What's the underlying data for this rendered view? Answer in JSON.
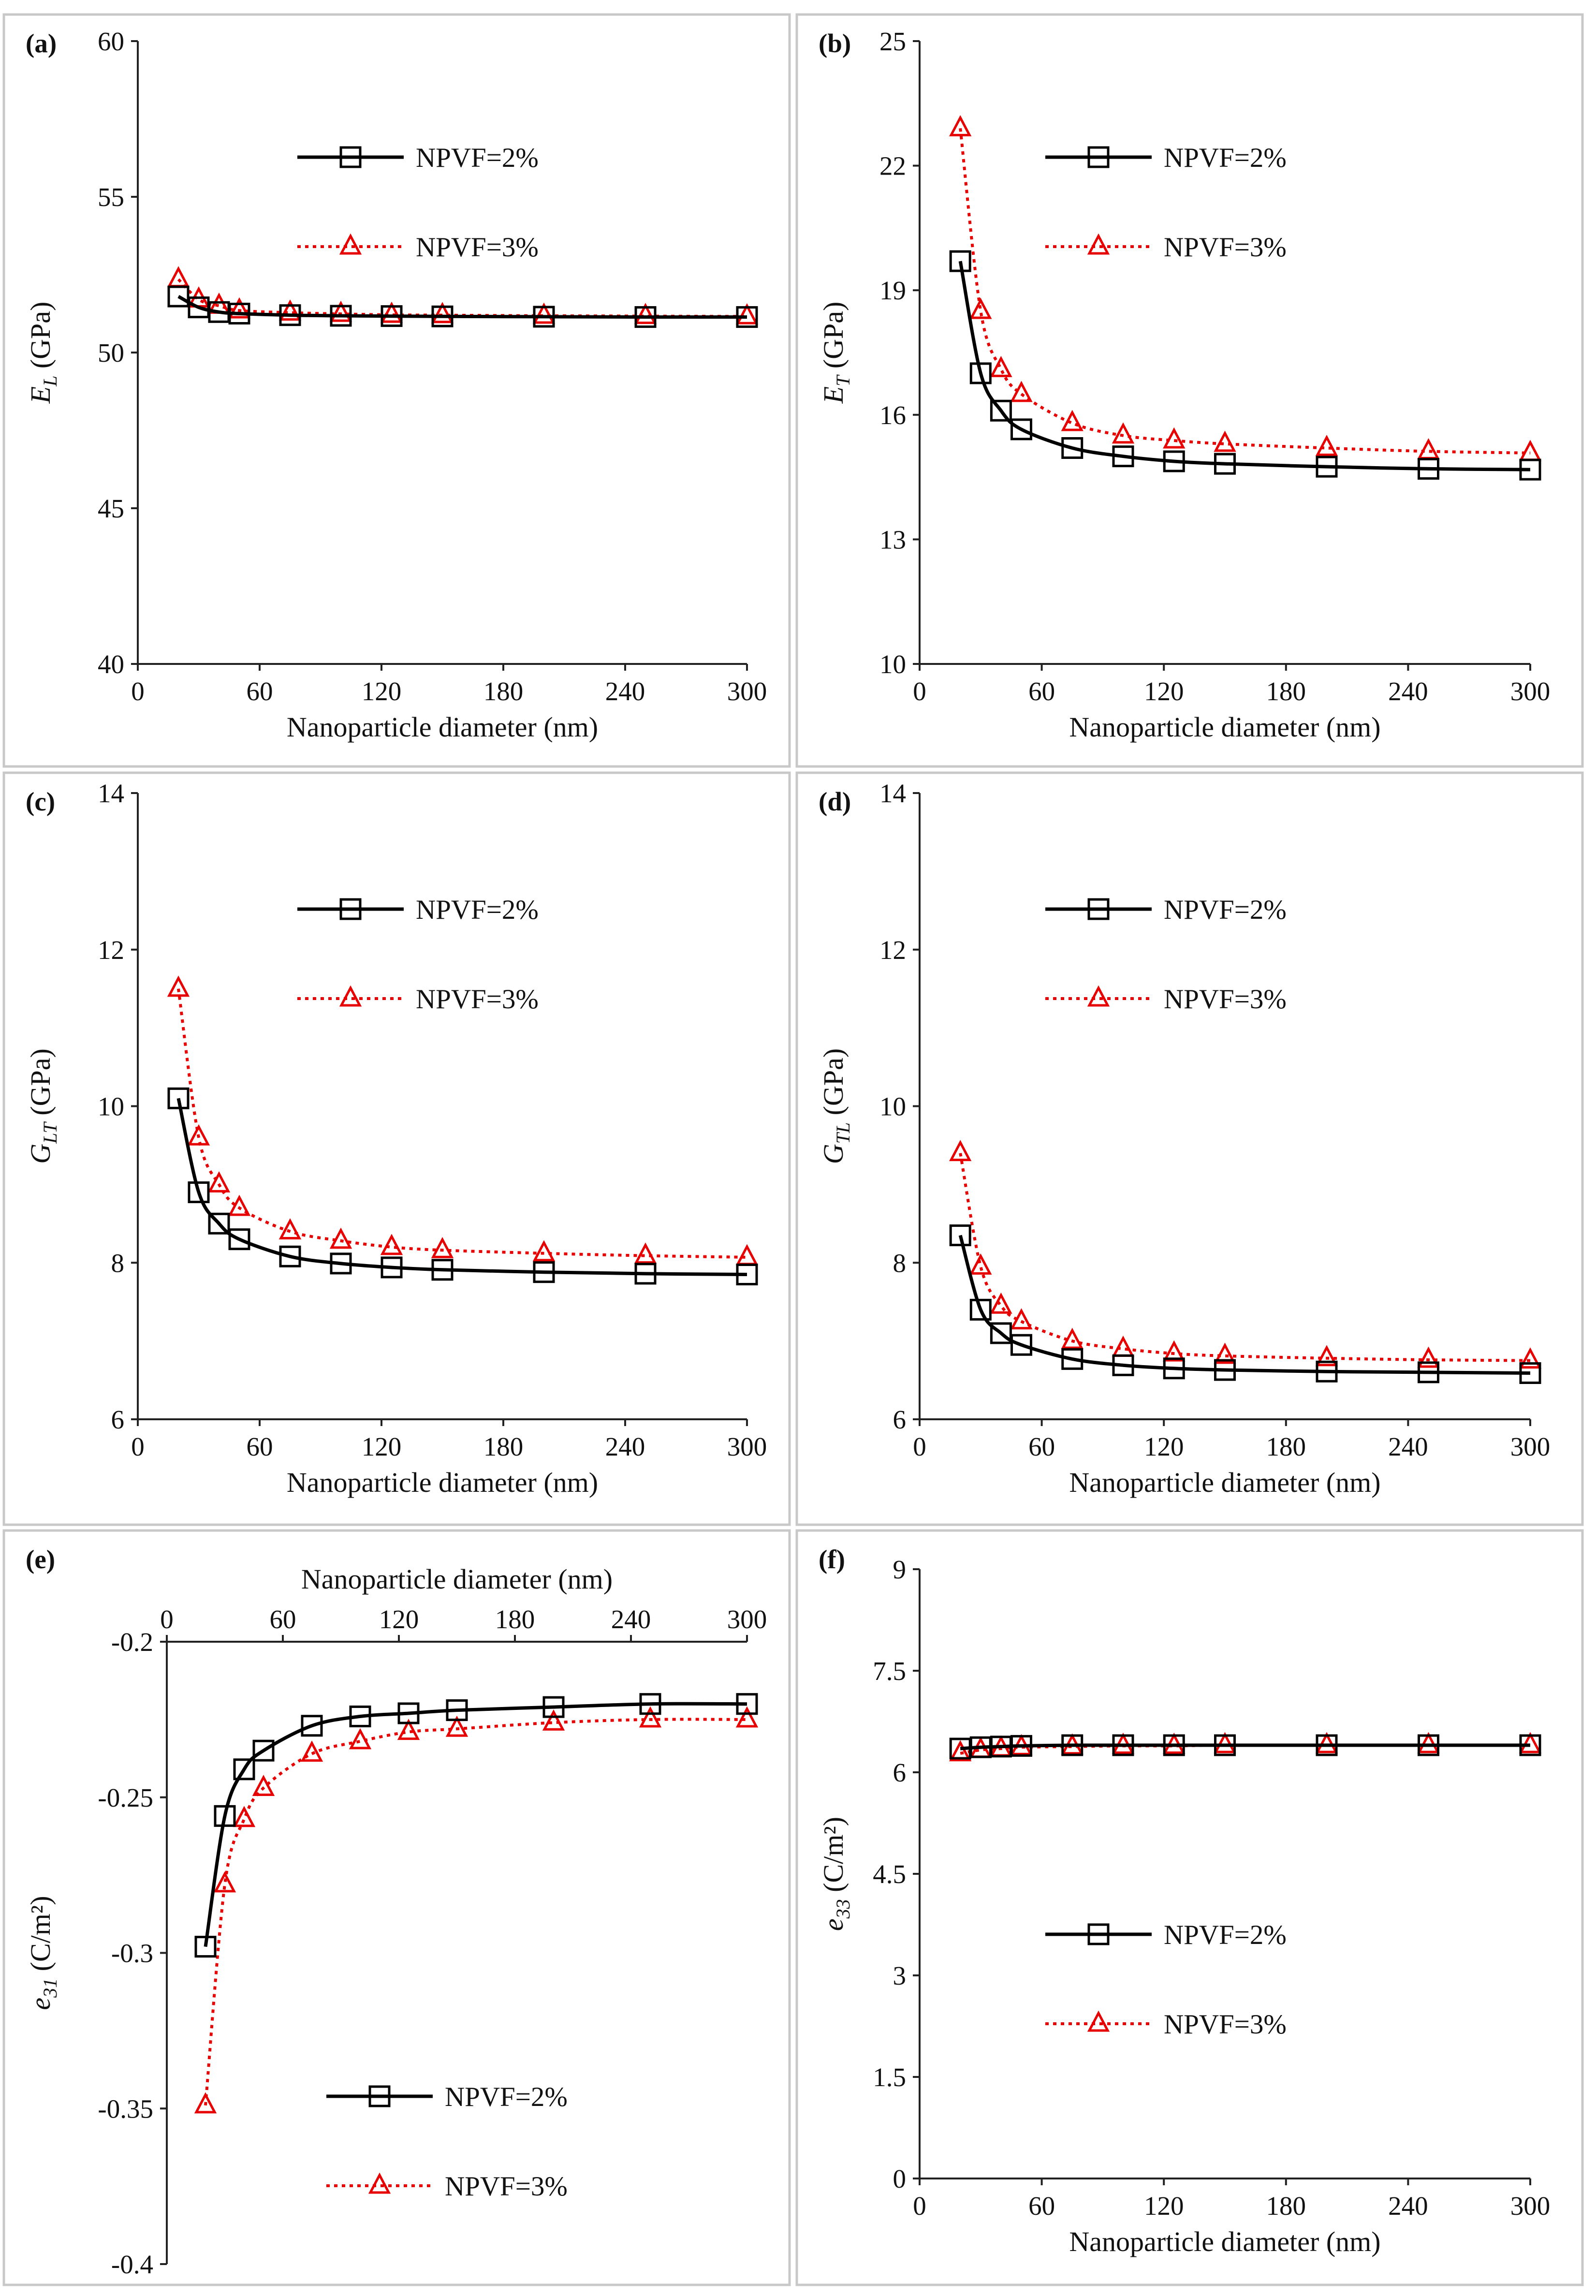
{
  "colors": {
    "series_2": "#000000",
    "series_3": "#e60000",
    "border": "#c8c8c8"
  },
  "chart_data": [
    {
      "type": "line",
      "label": "(a)",
      "xlabel": "Nanoparticle diameter (nm)",
      "xlabel_position": "bottom",
      "ylabel_main": "E",
      "ylabel_sub": "L",
      "ylabel_unit": " (GPa)",
      "xlim": [
        0,
        300
      ],
      "ylim": [
        40,
        60
      ],
      "xticks": [
        "0",
        "60",
        "120",
        "180",
        "240",
        "300"
      ],
      "yticks": [
        "40",
        "45",
        "50",
        "55",
        "60"
      ],
      "legend": "upper",
      "x": [
        20,
        30,
        40,
        50,
        75,
        100,
        125,
        150,
        200,
        250,
        300
      ],
      "series": [
        {
          "name": "NPVF=2%",
          "marker": "square",
          "style": "solid",
          "values": [
            51.8,
            51.45,
            51.3,
            51.25,
            51.2,
            51.18,
            51.17,
            51.16,
            51.15,
            51.14,
            51.14
          ]
        },
        {
          "name": "NPVF=3%",
          "marker": "triangle",
          "style": "dotted",
          "values": [
            52.35,
            51.7,
            51.5,
            51.35,
            51.28,
            51.24,
            51.21,
            51.2,
            51.18,
            51.17,
            51.16
          ]
        }
      ]
    },
    {
      "type": "line",
      "label": "(b)",
      "xlabel": "Nanoparticle diameter (nm)",
      "xlabel_position": "bottom",
      "ylabel_main": "E",
      "ylabel_sub": "T",
      "ylabel_unit": " (GPa)",
      "xlim": [
        0,
        300
      ],
      "ylim": [
        10,
        25
      ],
      "xticks": [
        "0",
        "60",
        "120",
        "180",
        "240",
        "300"
      ],
      "yticks": [
        "10",
        "13",
        "16",
        "19",
        "22",
        "25"
      ],
      "ytick_values": [
        10,
        13,
        16,
        19,
        22,
        25
      ],
      "legend": "upper",
      "x": [
        20,
        30,
        40,
        50,
        75,
        100,
        125,
        150,
        200,
        250,
        300
      ],
      "series": [
        {
          "name": "NPVF=2%",
          "marker": "square",
          "style": "solid",
          "values": [
            19.7,
            17.0,
            16.1,
            15.65,
            15.2,
            15.0,
            14.88,
            14.82,
            14.75,
            14.7,
            14.68
          ]
        },
        {
          "name": "NPVF=3%",
          "marker": "triangle",
          "style": "dotted",
          "values": [
            22.9,
            18.5,
            17.1,
            16.5,
            15.8,
            15.5,
            15.38,
            15.3,
            15.2,
            15.12,
            15.08
          ]
        }
      ]
    },
    {
      "type": "line",
      "label": "(c)",
      "xlabel": "Nanoparticle diameter (nm)",
      "xlabel_position": "bottom",
      "ylabel_main": "G",
      "ylabel_sub": "LT",
      "ylabel_unit": " (GPa)",
      "xlim": [
        0,
        300
      ],
      "ylim": [
        6,
        14
      ],
      "xticks": [
        "0",
        "60",
        "120",
        "180",
        "240",
        "300"
      ],
      "yticks": [
        "6",
        "8",
        "10",
        "12",
        "14"
      ],
      "legend": "upper",
      "x": [
        20,
        30,
        40,
        50,
        75,
        100,
        125,
        150,
        200,
        250,
        300
      ],
      "series": [
        {
          "name": "NPVF=2%",
          "marker": "square",
          "style": "solid",
          "values": [
            10.1,
            8.9,
            8.5,
            8.3,
            8.08,
            7.99,
            7.94,
            7.91,
            7.88,
            7.86,
            7.85
          ]
        },
        {
          "name": "NPVF=3%",
          "marker": "triangle",
          "style": "dotted",
          "values": [
            11.5,
            9.6,
            9.0,
            8.7,
            8.4,
            8.28,
            8.2,
            8.16,
            8.12,
            8.09,
            8.07
          ]
        }
      ]
    },
    {
      "type": "line",
      "label": "(d)",
      "xlabel": "Nanoparticle diameter (nm)",
      "xlabel_position": "bottom",
      "ylabel_main": "G",
      "ylabel_sub": "TL",
      "ylabel_unit": " (GPa)",
      "xlim": [
        0,
        300
      ],
      "ylim": [
        6,
        14
      ],
      "xticks": [
        "0",
        "60",
        "120",
        "180",
        "240",
        "300"
      ],
      "yticks": [
        "6",
        "8",
        "10",
        "12",
        "14"
      ],
      "legend": "upper",
      "x": [
        20,
        30,
        40,
        50,
        75,
        100,
        125,
        150,
        200,
        250,
        300
      ],
      "series": [
        {
          "name": "NPVF=2%",
          "marker": "square",
          "style": "solid",
          "values": [
            8.35,
            7.4,
            7.1,
            6.95,
            6.77,
            6.69,
            6.65,
            6.63,
            6.61,
            6.6,
            6.59
          ]
        },
        {
          "name": "NPVF=3%",
          "marker": "triangle",
          "style": "dotted",
          "values": [
            9.4,
            7.95,
            7.45,
            7.25,
            7.0,
            6.9,
            6.84,
            6.81,
            6.78,
            6.76,
            6.75
          ]
        }
      ]
    },
    {
      "type": "line",
      "label": "(e)",
      "xlabel": "Nanoparticle diameter (nm)",
      "xlabel_position": "top",
      "ylabel_main": "e",
      "ylabel_sub": "31",
      "ylabel_unit": " (C/m²)",
      "xlim": [
        0,
        300
      ],
      "ylim": [
        -0.4,
        -0.2
      ],
      "xticks": [
        "0",
        "60",
        "120",
        "180",
        "240",
        "300"
      ],
      "yticks": [
        "-0.4",
        "-0.35",
        "-0.3",
        "-0.25",
        "-0.2"
      ],
      "ytick_values": [
        -0.4,
        -0.35,
        -0.3,
        -0.25,
        -0.2
      ],
      "legend": "lower",
      "x": [
        20,
        30,
        40,
        50,
        75,
        100,
        125,
        150,
        200,
        250,
        300
      ],
      "series": [
        {
          "name": "NPVF=2%",
          "marker": "square",
          "style": "solid",
          "values": [
            -0.298,
            -0.256,
            -0.241,
            -0.235,
            -0.227,
            -0.224,
            -0.223,
            -0.222,
            -0.221,
            -0.22,
            -0.22
          ]
        },
        {
          "name": "NPVF=3%",
          "marker": "triangle",
          "style": "dotted",
          "values": [
            -0.349,
            -0.278,
            -0.257,
            -0.247,
            -0.236,
            -0.232,
            -0.229,
            -0.228,
            -0.226,
            -0.225,
            -0.225
          ]
        }
      ]
    },
    {
      "type": "line",
      "label": "(f)",
      "xlabel": "Nanoparticle diameter (nm)",
      "xlabel_position": "bottom",
      "ylabel_main": "e",
      "ylabel_sub": "33",
      "ylabel_unit": " (C/m²)",
      "xlim": [
        0,
        300
      ],
      "ylim": [
        0,
        9
      ],
      "xticks": [
        "0",
        "60",
        "120",
        "180",
        "240",
        "300"
      ],
      "yticks": [
        "0",
        "1.5",
        "3",
        "4.5",
        "6",
        "7.5",
        "9"
      ],
      "ytick_values": [
        0,
        1.5,
        3,
        4.5,
        6,
        7.5,
        9
      ],
      "legend": "middle",
      "x": [
        20,
        30,
        40,
        50,
        75,
        100,
        125,
        150,
        200,
        250,
        300
      ],
      "series": [
        {
          "name": "NPVF=2%",
          "marker": "square",
          "style": "solid",
          "values": [
            6.35,
            6.37,
            6.38,
            6.39,
            6.4,
            6.4,
            6.4,
            6.4,
            6.4,
            6.4,
            6.4
          ]
        },
        {
          "name": "NPVF=3%",
          "marker": "triangle",
          "style": "dotted",
          "values": [
            6.28,
            6.33,
            6.35,
            6.37,
            6.38,
            6.39,
            6.39,
            6.4,
            6.4,
            6.4,
            6.4
          ]
        }
      ]
    }
  ]
}
